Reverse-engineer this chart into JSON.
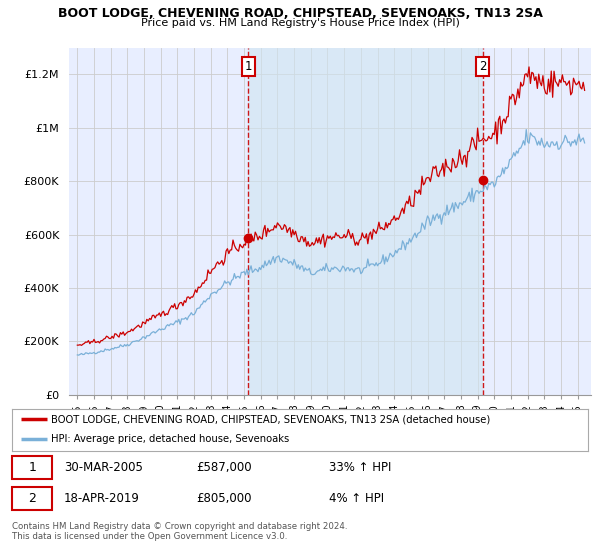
{
  "title": "BOOT LODGE, CHEVENING ROAD, CHIPSTEAD, SEVENOAKS, TN13 2SA",
  "subtitle": "Price paid vs. HM Land Registry's House Price Index (HPI)",
  "legend_line1": "BOOT LODGE, CHEVENING ROAD, CHIPSTEAD, SEVENOAKS, TN13 2SA (detached house)",
  "legend_line2": "HPI: Average price, detached house, Sevenoaks",
  "annotation1_date": "30-MAR-2005",
  "annotation1_price": "£587,000",
  "annotation1_hpi": "33% ↑ HPI",
  "annotation2_date": "18-APR-2019",
  "annotation2_price": "£805,000",
  "annotation2_hpi": "4% ↑ HPI",
  "footer": "Contains HM Land Registry data © Crown copyright and database right 2024.\nThis data is licensed under the Open Government Licence v3.0.",
  "bg_color": "#f0f4ff",
  "plot_bg_color": "#e8eeff",
  "grid_color": "#cccccc",
  "red_color": "#cc0000",
  "blue_color": "#7ab0d8",
  "shade_color": "#dce8f5",
  "annot_vline_color": "#cc0000",
  "ylim": [
    0,
    1300000
  ],
  "yticks": [
    0,
    200000,
    400000,
    600000,
    800000,
    1000000,
    1200000
  ],
  "ytick_labels": [
    "£0",
    "£200K",
    "£400K",
    "£600K",
    "£800K",
    "£1M",
    "£1.2M"
  ],
  "sale1_x": 2005.25,
  "sale1_y": 587000,
  "sale2_x": 2019.3,
  "sale2_y": 805000,
  "xlim_left": 1994.5,
  "xlim_right": 2025.8
}
